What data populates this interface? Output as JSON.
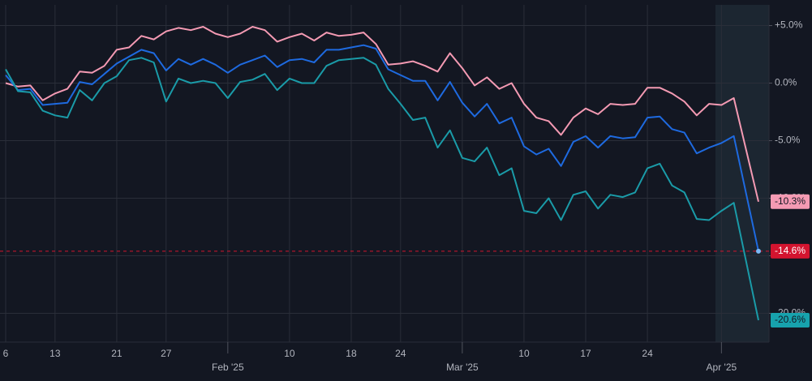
{
  "chart_data": {
    "type": "line",
    "categories": [
      "6",
      null,
      null,
      null,
      "13",
      null,
      null,
      null,
      null,
      "21",
      null,
      null,
      null,
      "27",
      null,
      null,
      null,
      null,
      "Feb '25",
      null,
      null,
      null,
      null,
      "10",
      null,
      null,
      null,
      null,
      "18",
      null,
      null,
      null,
      "24",
      null,
      null,
      null,
      null,
      "Mar '25",
      null,
      null,
      null,
      null,
      "10",
      null,
      null,
      null,
      null,
      "17",
      null,
      null,
      null,
      null,
      "24",
      null,
      null,
      null,
      null,
      null,
      "Apr '25",
      null,
      null,
      null
    ],
    "series": [
      {
        "color": "#f49ab3",
        "values": [
          0.0,
          -0.3,
          -0.2,
          -1.5,
          -0.9,
          -0.5,
          1.0,
          0.9,
          1.5,
          2.9,
          3.1,
          4.1,
          3.8,
          4.5,
          4.8,
          4.6,
          4.9,
          4.3,
          4.0,
          4.3,
          4.9,
          4.6,
          3.6,
          4.0,
          4.3,
          3.7,
          4.4,
          4.1,
          4.2,
          4.4,
          3.4,
          1.6,
          1.7,
          1.9,
          1.5,
          1.0,
          2.6,
          1.3,
          -0.2,
          0.5,
          -0.5,
          0.0,
          -1.8,
          -3.0,
          -3.3,
          -4.5,
          -3.0,
          -2.2,
          -2.7,
          -1.8,
          -1.9,
          -1.8,
          -0.4,
          -0.4,
          -0.9,
          -1.6,
          -2.8,
          -1.8,
          -1.9,
          -1.3,
          -5.8,
          -10.3
        ],
        "value_label": "-10.3%",
        "label_color": "#f49ab3",
        "label_text_color": "#131722"
      },
      {
        "color": "#1e6ae0",
        "values": [
          0.7,
          -0.6,
          -0.5,
          -1.9,
          -1.8,
          -1.7,
          0.1,
          -0.1,
          0.8,
          1.7,
          2.3,
          2.9,
          2.6,
          1.1,
          2.1,
          1.6,
          2.1,
          1.6,
          0.9,
          1.6,
          2.0,
          2.4,
          1.4,
          2.0,
          2.1,
          1.8,
          2.9,
          2.9,
          3.1,
          3.3,
          3.0,
          1.2,
          0.7,
          0.2,
          0.2,
          -1.5,
          0.1,
          -1.7,
          -2.9,
          -1.8,
          -3.5,
          -3.0,
          -5.5,
          -6.2,
          -5.7,
          -7.2,
          -5.1,
          -4.6,
          -5.6,
          -4.6,
          -4.8,
          -4.7,
          -3.0,
          -2.9,
          -4.0,
          -4.3,
          -6.1,
          -5.6,
          -5.2,
          -4.6,
          -9.6,
          -14.6
        ],
        "value_label": "-14.6%",
        "label_color": "#d3142f",
        "label_text_color": "#ffffff",
        "reference_line": true,
        "end_dot": "#7ab8f5"
      },
      {
        "color": "#1a9ba8",
        "values": [
          1.2,
          -0.7,
          -0.8,
          -2.4,
          -2.8,
          -3.0,
          -0.6,
          -1.5,
          0.0,
          0.6,
          2.0,
          2.2,
          1.8,
          -1.6,
          0.4,
          0.0,
          0.2,
          0.0,
          -1.3,
          0.1,
          0.3,
          0.8,
          -0.6,
          0.4,
          0.0,
          0.0,
          1.5,
          2.0,
          2.1,
          2.2,
          1.6,
          -0.5,
          -1.8,
          -3.2,
          -3.0,
          -5.6,
          -4.1,
          -6.5,
          -6.8,
          -5.6,
          -8.0,
          -7.4,
          -11.1,
          -11.3,
          -10.0,
          -11.9,
          -9.7,
          -9.4,
          -10.9,
          -9.7,
          -9.9,
          -9.5,
          -7.4,
          -7.0,
          -8.9,
          -9.5,
          -11.8,
          -11.9,
          -11.1,
          -10.4,
          -15.5,
          -20.6
        ],
        "value_label": "-20.6%",
        "label_color": "#17a2ad",
        "label_text_color": "#131722"
      }
    ],
    "ylim": [
      -22.5,
      6.8
    ],
    "yticks": [
      {
        "value": 5,
        "label": "+5.0%"
      },
      {
        "value": 0,
        "label": "0.0%"
      },
      {
        "value": -5,
        "label": "-5.0%"
      },
      {
        "value": -10,
        "label": "-10.0%"
      },
      {
        "value": -15,
        "label": "-15.0%"
      },
      {
        "value": -20,
        "label": "-20.0%"
      }
    ],
    "grid": true
  }
}
